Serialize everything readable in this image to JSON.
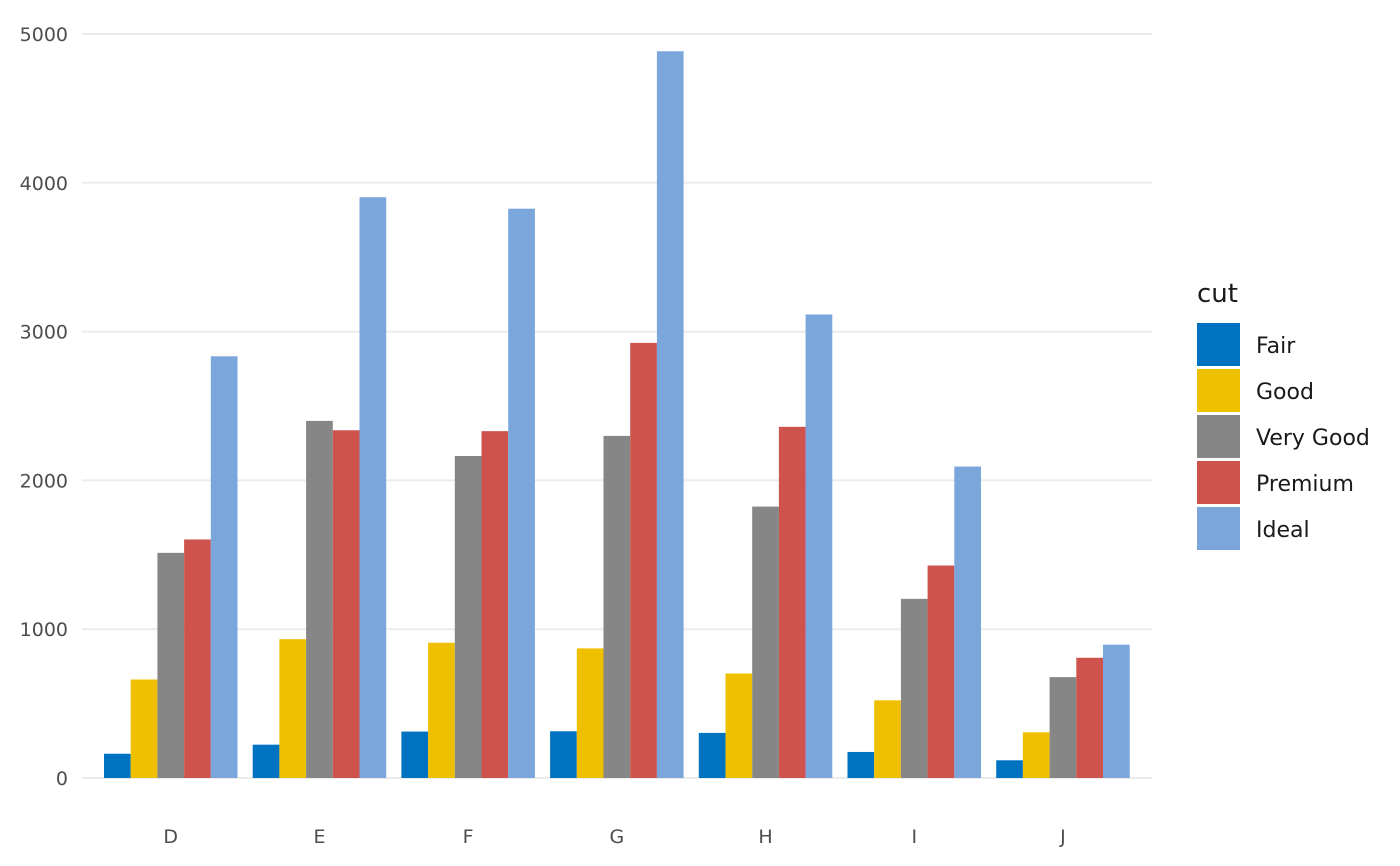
{
  "chart_data": {
    "type": "bar",
    "categories": [
      "D",
      "E",
      "F",
      "G",
      "H",
      "I",
      "J"
    ],
    "series": [
      {
        "name": "Fair",
        "color": "#0072c2",
        "values": [
          163,
          224,
          312,
          314,
          303,
          175,
          119
        ]
      },
      {
        "name": "Good",
        "color": "#efc000",
        "values": [
          662,
          933,
          909,
          871,
          702,
          522,
          307
        ]
      },
      {
        "name": "Very Good",
        "color": "#868686",
        "values": [
          1513,
          2400,
          2164,
          2299,
          1824,
          1204,
          678
        ]
      },
      {
        "name": "Premium",
        "color": "#cd534c",
        "values": [
          1603,
          2337,
          2331,
          2924,
          2360,
          1428,
          808
        ]
      },
      {
        "name": "Ideal",
        "color": "#7aa6dc",
        "values": [
          2834,
          3903,
          3826,
          4884,
          3115,
          2093,
          896
        ]
      }
    ],
    "yticks": [
      "0",
      "1000",
      "2000",
      "3000",
      "4000",
      "5000"
    ],
    "ylim": [
      0,
      5000
    ],
    "legend_title": "cut",
    "legend_position": "right",
    "grid": true
  }
}
